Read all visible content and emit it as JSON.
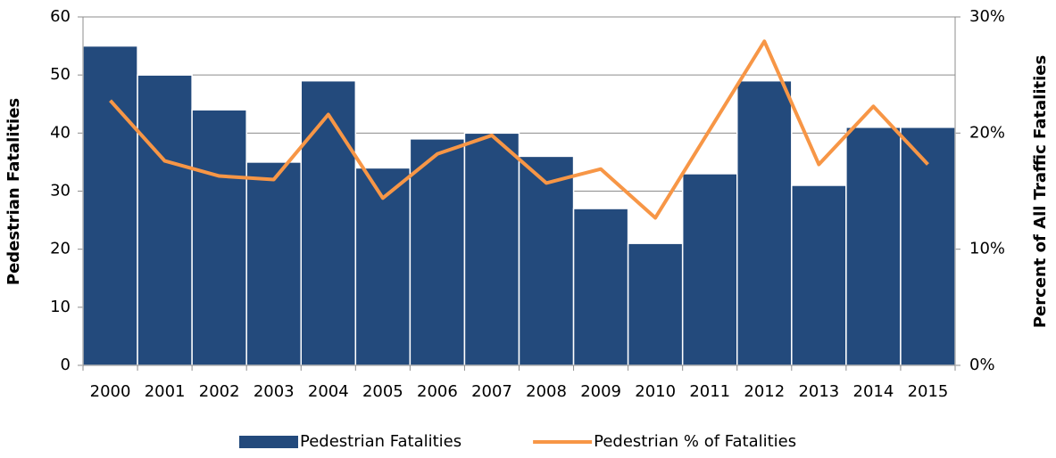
{
  "chart_data": {
    "type": "bar",
    "categories": [
      "2000",
      "2001",
      "2002",
      "2003",
      "2004",
      "2005",
      "2006",
      "2007",
      "2008",
      "2009",
      "2010",
      "2011",
      "2012",
      "2013",
      "2014",
      "2015"
    ],
    "series": [
      {
        "name": "Pedestrian Fatalities",
        "type": "bar",
        "color": "#234a7c",
        "values": [
          55,
          50,
          44,
          35,
          49,
          34,
          39,
          40,
          36,
          27,
          21,
          33,
          49,
          31,
          41,
          41
        ]
      },
      {
        "name": "Pedestrian % of Fatalities",
        "type": "line",
        "axis": "y2",
        "color": "#f79646",
        "values": [
          22.8,
          17.6,
          16.3,
          16.0,
          21.6,
          14.4,
          18.2,
          19.8,
          15.7,
          16.9,
          12.7,
          20.3,
          27.9,
          17.3,
          22.3,
          17.3
        ]
      }
    ],
    "y_label": "Pedestrian Fatalities",
    "y2_label": "Percent of All Traffic Fatalities",
    "ylim": [
      0,
      60
    ],
    "yticks": [
      0,
      10,
      20,
      30,
      40,
      50,
      60
    ],
    "y2lim": [
      0,
      30
    ],
    "y2ticks": [
      {
        "value": 0,
        "label": "0%"
      },
      {
        "value": 10,
        "label": "10%"
      },
      {
        "value": 20,
        "label": "20%"
      },
      {
        "value": 30,
        "label": "30%"
      }
    ],
    "grid": true,
    "legend": "bottom"
  }
}
